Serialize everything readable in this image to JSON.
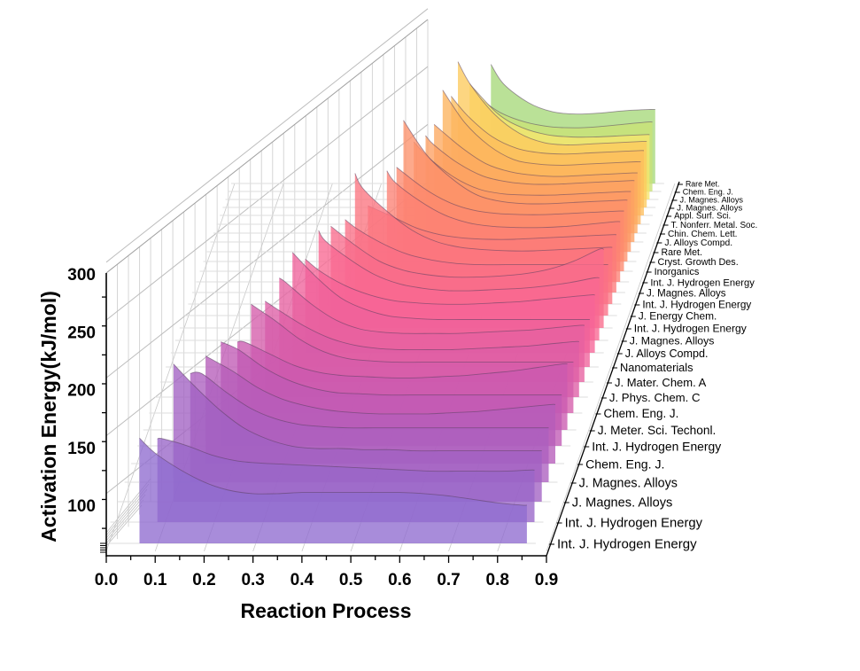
{
  "chart_data": {
    "type": "area",
    "subtype": "3d-waterfall",
    "title": "",
    "xlabel": "Reaction Process",
    "ylabel": "Activation Energy(kJ/mol)",
    "xlim": [
      0.0,
      0.9
    ],
    "ylim": [
      60,
      300
    ],
    "x_ticks": [
      "0.0",
      "0.1",
      "0.2",
      "0.3",
      "0.4",
      "0.5",
      "0.6",
      "0.7",
      "0.8",
      "0.9"
    ],
    "y_ticks": [
      "100",
      "150",
      "200",
      "250",
      "300"
    ],
    "grid": true,
    "legend": "none",
    "depth_axis_order": "front-to-back",
    "categories": [
      "Int. J. Hydrogen Energy",
      "Int. J. Hydrogen Energy",
      "J. Magnes. Alloys",
      "J. Magnes. Alloys",
      "Chem. Eng. J.",
      "Int. J. Hydrogen Energy",
      "J. Meter. Sci. Techonl.",
      "Chem. Eng. J.",
      "J. Phys. Chem. C",
      "J. Mater. Chem. A",
      "Nanomaterials",
      "J. Alloys Compd.",
      "J. Magnes. Alloys",
      "Int. J. Hydrogen Energy",
      "J. Energy Chem.",
      "Int. J. Hydrogen Energy",
      "J. Magnes. Alloys",
      "Int. J. Hydrogen Energy",
      "Inorganics",
      "Cryst. Growth Des.",
      "Rare Met.",
      "J. Alloys Compd.",
      "Chin. Chem. Lett.",
      "T. Nonferr. Metal. Soc.",
      "Appl. Surf. Sci.",
      "J. Magnes. Alloys",
      "J. Magnes. Alloys",
      "Chem. Eng. J.",
      "Rare Met."
    ],
    "x": [
      0.05,
      0.1,
      0.15,
      0.2,
      0.25,
      0.3,
      0.35,
      0.4,
      0.45,
      0.5,
      0.55,
      0.6,
      0.65,
      0.7,
      0.75,
      0.8,
      0.85
    ],
    "series": [
      {
        "name": "Int. J. Hydrogen Energy",
        "start": 0.068,
        "values": [
          151,
          138,
          124,
          113,
          106,
          103,
          103,
          104,
          104,
          104,
          104,
          104,
          103,
          101,
          98,
          95,
          93
        ],
        "color": "#8f6ccf"
      },
      {
        "name": "Int. J. Hydrogen Energy",
        "start": 0.089,
        "values": [
          132,
          132,
          126,
          118,
          113,
          111,
          110,
          109,
          108,
          107,
          106,
          105,
          104,
          104,
          104,
          104,
          105
        ],
        "color": "#9865c8"
      },
      {
        "name": "J. Magnes. Alloys",
        "start": 0.107,
        "values": [
          179,
          179,
          160,
          140,
          124,
          114,
          108,
          106,
          106,
          105,
          105,
          104,
          104,
          104,
          104,
          104,
          104
        ],
        "color": "#a262c3"
      },
      {
        "name": "J. Magnes. Alloys",
        "start": 0.127,
        "values": [
          154,
          154,
          154,
          138,
          124,
          115,
          110,
          108,
          107,
          107,
          107,
          107,
          107,
          107,
          107,
          107,
          107
        ],
        "color": "#ac5fbf"
      },
      {
        "name": "Chem. Eng. J.",
        "start": 0.145,
        "values": [
          153,
          153,
          153,
          140,
          126,
          116,
          110,
          106,
          104,
          103,
          103,
          103,
          104,
          105,
          107,
          109,
          111
        ],
        "color": "#b65cba"
      },
      {
        "name": "Int. J. Hydrogen Energy",
        "start": 0.163,
        "values": [
          150,
          150,
          150,
          143,
          128,
          117,
          110,
          106,
          105,
          104,
          104,
          104,
          104,
          104,
          104,
          104,
          104
        ],
        "color": "#c05ab5"
      },
      {
        "name": "J. Meter. Sci. Techonl.",
        "start": 0.185,
        "values": [
          136,
          136,
          136,
          136,
          126,
          116,
          110,
          107,
          106,
          105,
          105,
          106,
          107,
          109,
          111,
          114,
          117
        ],
        "color": "#ca5ab0"
      },
      {
        "name": "Chem. Eng. J.",
        "start": 0.201,
        "values": [
          154,
          154,
          154,
          154,
          140,
          124,
          113,
          107,
          105,
          104,
          104,
          104,
          104,
          104,
          104,
          104,
          104
        ],
        "color": "#d55caa"
      },
      {
        "name": "J. Phys. Chem. C",
        "start": 0.218,
        "values": [
          143,
          143,
          143,
          143,
          134,
          121,
          111,
          105,
          102,
          101,
          101,
          101,
          102,
          103,
          104,
          106,
          108
        ],
        "color": "#de5ea5"
      },
      {
        "name": "J. Mater. Chem. A",
        "start": 0.236,
        "values": [
          150,
          150,
          150,
          150,
          146,
          128,
          114,
          106,
          103,
          102,
          102,
          102,
          103,
          104,
          105,
          107,
          109
        ],
        "color": "#e760a0"
      },
      {
        "name": "Nanomaterials",
        "start": 0.252,
        "values": [
          159,
          159,
          159,
          159,
          159,
          138,
          120,
          110,
          104,
          102,
          101,
          101,
          101,
          101,
          101,
          101,
          101
        ],
        "color": "#f0629b"
      },
      {
        "name": "J. Alloys Compd.",
        "start": 0.268,
        "values": [
          141,
          141,
          141,
          141,
          141,
          130,
          118,
          110,
          105,
          103,
          102,
          102,
          103,
          104,
          106,
          108,
          110
        ],
        "color": "#f66497"
      },
      {
        "name": "J. Magnes. Alloys",
        "start": 0.286,
        "values": [
          155,
          155,
          155,
          155,
          155,
          146,
          130,
          117,
          109,
          105,
          103,
          103,
          104,
          105,
          107,
          110,
          114
        ],
        "color": "#f86892"
      },
      {
        "name": "Int. J. Hydrogen Energy",
        "start": 0.302,
        "values": [
          148,
          148,
          148,
          148,
          148,
          148,
          132,
          118,
          110,
          106,
          104,
          104,
          105,
          107,
          111,
          118,
          128
        ],
        "color": "#f96c8c"
      },
      {
        "name": "J. Energy Chem.",
        "start": 0.322,
        "values": [
          143,
          143,
          143,
          143,
          143,
          143,
          134,
          122,
          113,
          108,
          105,
          104,
          104,
          104,
          104,
          104,
          104
        ],
        "color": "#fa7086"
      },
      {
        "name": "Int. J. Hydrogen Energy",
        "start": 0.334,
        "values": [
          173,
          173,
          173,
          173,
          173,
          173,
          160,
          140,
          124,
          114,
          109,
          107,
          106,
          106,
          107,
          108,
          109
        ],
        "color": "#fb7580"
      },
      {
        "name": "J. Magnes. Alloys",
        "start": 0.352,
        "values": [
          135,
          135,
          135,
          135,
          135,
          135,
          135,
          126,
          116,
          110,
          107,
          106,
          106,
          107,
          108,
          109,
          110
        ],
        "color": "#fb7b7a"
      },
      {
        "name": "Int. J. Hydrogen Energy",
        "start": 0.383,
        "values": [
          156,
          156,
          156,
          156,
          156,
          156,
          156,
          146,
          130,
          118,
          111,
          108,
          107,
          107,
          108,
          110,
          112
        ],
        "color": "#fc8274"
      },
      {
        "name": "Inorganics",
        "start": 0.395,
        "values": [
          150,
          150,
          150,
          150,
          150,
          150,
          150,
          146,
          132,
          120,
          113,
          110,
          109,
          109,
          110,
          111,
          112
        ],
        "color": "#fc896e"
      },
      {
        "name": "Cryst. Growth Des.",
        "start": 0.402,
        "values": [
          182,
          182,
          182,
          182,
          182,
          182,
          182,
          176,
          152,
          132,
          118,
          112,
          110,
          110,
          111,
          112,
          113
        ],
        "color": "#fc916a"
      },
      {
        "name": "Rare Met.",
        "start": 0.416,
        "values": [
          155,
          155,
          155,
          155,
          155,
          155,
          155,
          155,
          140,
          124,
          114,
          110,
          109,
          109,
          110,
          111,
          112
        ],
        "color": "#fc9866"
      },
      {
        "name": "J. Alloys Compd.",
        "start": 0.433,
        "values": [
          152,
          152,
          152,
          152,
          152,
          152,
          152,
          152,
          144,
          128,
          117,
          112,
          110,
          110,
          111,
          112,
          113
        ],
        "color": "#fca063"
      },
      {
        "name": "Chin. Chem. Lett.",
        "start": 0.444,
        "values": [
          154,
          154,
          154,
          154,
          154,
          154,
          154,
          154,
          150,
          134,
          120,
          113,
          110,
          109,
          110,
          111,
          112
        ],
        "color": "#fda960"
      },
      {
        "name": "T. Nonferr. Metal. Soc.",
        "start": 0.455,
        "values": [
          176,
          176,
          176,
          176,
          176,
          176,
          176,
          176,
          170,
          148,
          128,
          116,
          112,
          111,
          112,
          113,
          114
        ],
        "color": "#fdb35e"
      },
      {
        "name": "Appl. Surf. Sci.",
        "start": 0.466,
        "values": [
          163,
          163,
          163,
          163,
          163,
          163,
          163,
          163,
          163,
          146,
          128,
          118,
          114,
          113,
          114,
          115,
          116
        ],
        "color": "#fdbe5d"
      },
      {
        "name": "J. Magnes. Alloys",
        "start": 0.474,
        "values": [
          186,
          186,
          186,
          186,
          186,
          186,
          186,
          186,
          186,
          166,
          140,
          124,
          116,
          114,
          115,
          116,
          117
        ],
        "color": "#fccb5e"
      },
      {
        "name": "J. Magnes. Alloys",
        "start": 0.492,
        "values": [
          160,
          160,
          160,
          160,
          160,
          160,
          160,
          160,
          160,
          152,
          134,
          122,
          116,
          114,
          114,
          115,
          116
        ],
        "color": "#f6e56e"
      },
      {
        "name": "Chem. Eng. J.",
        "start": 0.508,
        "values": [
          140,
          140,
          140,
          140,
          140,
          140,
          140,
          140,
          140,
          140,
          128,
          120,
          116,
          115,
          116,
          118,
          120
        ],
        "color": "#c9e276"
      },
      {
        "name": "Rare Met.",
        "start": 0.524,
        "values": [
          163,
          163,
          163,
          163,
          163,
          163,
          163,
          163,
          163,
          163,
          146,
          130,
          122,
          120,
          121,
          123,
          124
        ],
        "color": "#a6d97a"
      }
    ]
  }
}
